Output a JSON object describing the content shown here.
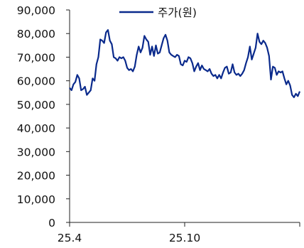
{
  "chart_data": {
    "type": "line",
    "title": "",
    "xlabel": "",
    "ylabel": "",
    "ylim": [
      0,
      90000
    ],
    "yticks": [
      0,
      10000,
      20000,
      30000,
      40000,
      50000,
      60000,
      70000,
      80000,
      90000
    ],
    "ytick_labels": [
      "0",
      "10,000",
      "20,000",
      "30,000",
      "40,000",
      "50,000",
      "60,000",
      "70,000",
      "80,000",
      "90,000"
    ],
    "xtick_labels": [
      "25.4",
      "25.10"
    ],
    "grid": false,
    "legend_position": "top-center",
    "line_color": "#0a2a8c",
    "series": [
      {
        "name": "주가(원)",
        "values": [
          57000,
          56000,
          58500,
          59500,
          62500,
          61000,
          56000,
          56500,
          57500,
          54000,
          55000,
          56000,
          61000,
          60000,
          67000,
          70000,
          77500,
          77000,
          76000,
          80500,
          81500,
          77000,
          75500,
          70000,
          69500,
          68500,
          70000,
          69500,
          70000,
          68500,
          65500,
          64500,
          65000,
          64000,
          66000,
          71000,
          74500,
          72000,
          74000,
          79000,
          77500,
          76500,
          71000,
          74500,
          70500,
          75000,
          71500,
          72000,
          75000,
          78000,
          79500,
          77000,
          72000,
          71000,
          70500,
          70000,
          71000,
          70500,
          67000,
          66500,
          68500,
          68000,
          70000,
          69500,
          67500,
          64000,
          66000,
          67500,
          64500,
          66500,
          65000,
          64500,
          64000,
          65000,
          63000,
          62000,
          62500,
          61000,
          62500,
          61000,
          63500,
          65500,
          66000,
          63000,
          63500,
          67000,
          63500,
          62500,
          63000,
          62000,
          63000,
          64500,
          67500,
          70000,
          74500,
          69000,
          71500,
          74000,
          80000,
          76500,
          75500,
          77000,
          76000,
          74000,
          70500,
          60500,
          66000,
          65500,
          62500,
          64000,
          63500,
          64000,
          61000,
          58500,
          60000,
          58000,
          54000,
          53000,
          54500,
          53500,
          55500
        ]
      }
    ]
  }
}
